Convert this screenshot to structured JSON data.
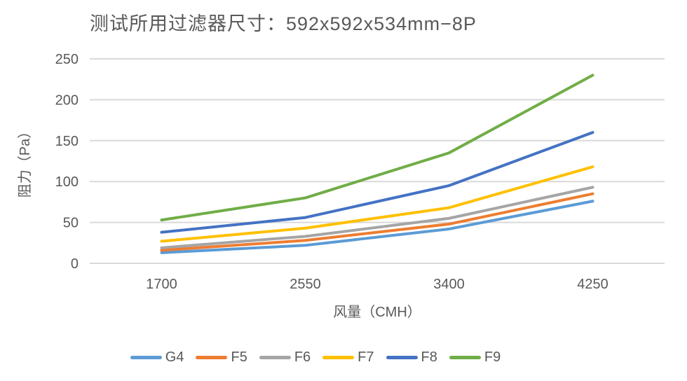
{
  "chart_data": {
    "type": "line",
    "title": "测试所用过滤器尺寸：592x592x534mm−8P",
    "x": [
      1700,
      2550,
      3400,
      4250
    ],
    "x_tick_labels": [
      "1700",
      "2550",
      "3400",
      "4250"
    ],
    "series": [
      {
        "name": "G4",
        "color": "#5B9BD5",
        "values": [
          13,
          22,
          42,
          76
        ]
      },
      {
        "name": "F5",
        "color": "#ED7D31",
        "values": [
          16,
          28,
          48,
          85
        ]
      },
      {
        "name": "F6",
        "color": "#A5A5A5",
        "values": [
          19,
          33,
          55,
          93
        ]
      },
      {
        "name": "F7",
        "color": "#FFC000",
        "values": [
          27,
          43,
          68,
          118
        ]
      },
      {
        "name": "F8",
        "color": "#4472C4",
        "values": [
          38,
          56,
          95,
          160
        ]
      },
      {
        "name": "F9",
        "color": "#70AD47",
        "values": [
          53,
          80,
          135,
          230
        ]
      }
    ],
    "xlabel": "风量（CMH）",
    "ylabel": "阻力（Pa）",
    "ylim": [
      0,
      250
    ],
    "y_ticks": [
      0,
      50,
      100,
      150,
      200,
      250
    ],
    "grid": true,
    "legend_position": "bottom"
  },
  "colors": {
    "text": "#595959",
    "gridline": "#D9D9D9",
    "background": "#FFFFFF"
  }
}
